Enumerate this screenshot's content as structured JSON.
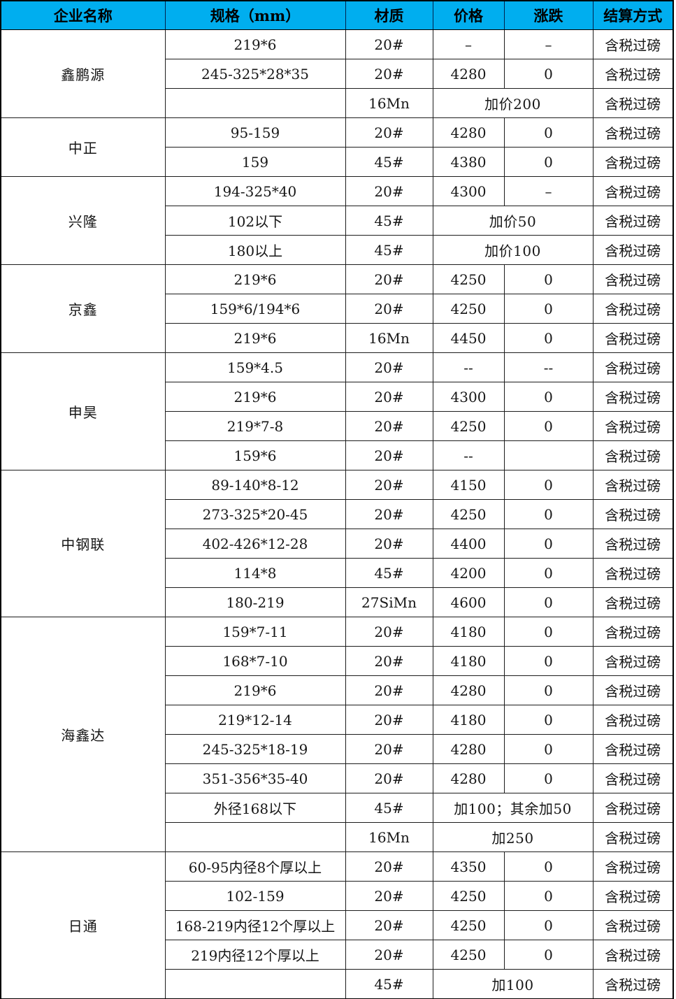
{
  "table": {
    "header_bg": "#00AEEF",
    "headers": [
      "企业名称",
      "规格（mm）",
      "材质",
      "价格",
      "涨跌",
      "结算方式"
    ],
    "groups": [
      {
        "company": "鑫鹏源",
        "rows": [
          {
            "spec": "219*6",
            "material": "20#",
            "price": "–",
            "change": "–",
            "settlement": "含税过磅"
          },
          {
            "spec": "245-325*28*35",
            "material": "20#",
            "price": "4280",
            "change": "0",
            "settlement": "含税过磅"
          },
          {
            "spec": "",
            "material": "16Mn",
            "price_span": "加价200",
            "settlement": "含税过磅"
          }
        ]
      },
      {
        "company": "中正",
        "rows": [
          {
            "spec": "95-159",
            "material": "20#",
            "price": "4280",
            "change": "0",
            "settlement": "含税过磅"
          },
          {
            "spec": "159",
            "material": "45#",
            "price": "4380",
            "change": "0",
            "settlement": "含税过磅"
          }
        ]
      },
      {
        "company": "兴隆",
        "rows": [
          {
            "spec": "194-325*40",
            "material": "20#",
            "price": "4300",
            "change": "–",
            "settlement": "含税过磅"
          },
          {
            "spec": "102以下",
            "material": "45#",
            "price_span": "加价50",
            "settlement": "含税过磅"
          },
          {
            "spec": "180以上",
            "material": "45#",
            "price_span": "加价100",
            "settlement": "含税过磅"
          }
        ]
      },
      {
        "company": "京鑫",
        "rows": [
          {
            "spec": "219*6",
            "material": "20#",
            "price": "4250",
            "change": "0",
            "settlement": "含税过磅"
          },
          {
            "spec": "159*6/194*6",
            "material": "20#",
            "price": "4250",
            "change": "0",
            "settlement": "含税过磅"
          },
          {
            "spec": "219*6",
            "material": "16Mn",
            "price": "4450",
            "change": "0",
            "settlement": "含税过磅"
          }
        ]
      },
      {
        "company": "申昊",
        "rows": [
          {
            "spec": "159*4.5",
            "material": "20#",
            "price": "--",
            "change": "--",
            "settlement": "含税过磅"
          },
          {
            "spec": "219*6",
            "material": "20#",
            "price": "4300",
            "change": "0",
            "settlement": "含税过磅"
          },
          {
            "spec": "219*7-8",
            "material": "20#",
            "price": "4250",
            "change": "0",
            "settlement": "含税过磅"
          },
          {
            "spec": "159*6",
            "material": "20#",
            "price": "--",
            "change": "",
            "settlement": "含税过磅"
          }
        ]
      },
      {
        "company": "中钢联",
        "rows": [
          {
            "spec": "89-140*8-12",
            "material": "20#",
            "price": "4150",
            "change": "0",
            "settlement": "含税过磅"
          },
          {
            "spec": "273-325*20-45",
            "material": "20#",
            "price": "4250",
            "change": "0",
            "settlement": "含税过磅"
          },
          {
            "spec": "402-426*12-28",
            "material": "20#",
            "price": "4400",
            "change": "0",
            "settlement": "含税过磅"
          },
          {
            "spec": "114*8",
            "material": "45#",
            "price": "4200",
            "change": "0",
            "settlement": "含税过磅"
          },
          {
            "spec": "180-219",
            "material": "27SiMn",
            "price": "4600",
            "change": "0",
            "settlement": "含税过磅"
          }
        ]
      },
      {
        "company": "海鑫达",
        "rows": [
          {
            "spec": "159*7-11",
            "material": "20#",
            "price": "4180",
            "change": "0",
            "settlement": "含税过磅"
          },
          {
            "spec": "168*7-10",
            "material": "20#",
            "price": "4180",
            "change": "0",
            "settlement": "含税过磅"
          },
          {
            "spec": "219*6",
            "material": "20#",
            "price": "4280",
            "change": "0",
            "settlement": "含税过磅"
          },
          {
            "spec": "219*12-14",
            "material": "20#",
            "price": "4180",
            "change": "0",
            "settlement": "含税过磅"
          },
          {
            "spec": "245-325*18-19",
            "material": "20#",
            "price": "4280",
            "change": "0",
            "settlement": "含税过磅"
          },
          {
            "spec": "351-356*35-40",
            "material": "20#",
            "price": "4280",
            "change": "0",
            "settlement": "含税过磅"
          },
          {
            "spec": "外径168以下",
            "material": "45#",
            "price_span": "加100；其余加50",
            "settlement": "含税过磅"
          },
          {
            "spec": "",
            "material": "16Mn",
            "price_span": "加250",
            "settlement": "含税过磅"
          }
        ]
      },
      {
        "company": "日通",
        "rows": [
          {
            "spec": "60-95内径8个厚以上",
            "material": "20#",
            "price": "4350",
            "change": "0",
            "settlement": "含税过磅"
          },
          {
            "spec": "102-159",
            "material": "20#",
            "price": "4250",
            "change": "0",
            "settlement": "含税过磅"
          },
          {
            "spec": "168-219内径12个厚以上",
            "material": "20#",
            "price": "4250",
            "change": "0",
            "settlement": "含税过磅"
          },
          {
            "spec": "219内径12个厚以上",
            "material": "20#",
            "price": "4250",
            "change": "0",
            "settlement": "含税过磅"
          },
          {
            "spec": "",
            "material": "45#",
            "price_span": "加100",
            "settlement": "含税过磅"
          }
        ]
      }
    ]
  }
}
